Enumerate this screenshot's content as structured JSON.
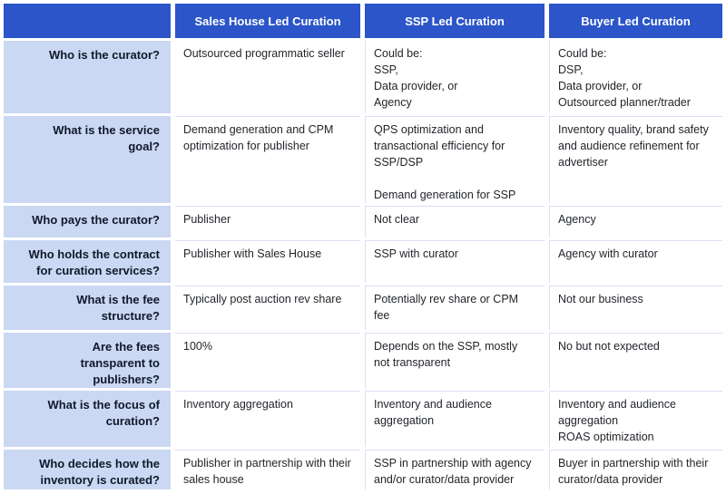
{
  "colors": {
    "header_bg": "#2b55c8",
    "header_text": "#ffffff",
    "label_bg": "#cbd8f3",
    "label_text": "#10182a",
    "body_text": "#1f2328",
    "divider": "#d9e0f0"
  },
  "table": {
    "columns": [
      "Sales House Led Curation",
      "SSP Led Curation",
      "Buyer Led Curation"
    ],
    "rows": [
      {
        "label": "Who is the curator?",
        "cells": [
          "Outsourced programmatic seller",
          "Could be:\nSSP,\nData provider, or\nAgency",
          "Could be:\nDSP,\nData provider, or\nOutsourced planner/trader"
        ]
      },
      {
        "label": "What is the service\ngoal?",
        "cells": [
          "Demand generation and CPM\noptimization for publisher",
          "QPS optimization and\ntransactional efficiency for\nSSP/DSP\n\nDemand generation for SSP",
          "Inventory quality, brand safety\nand audience refinement for\nadvertiser"
        ]
      },
      {
        "label": "Who pays the curator?",
        "cells": [
          "Publisher",
          "Not clear",
          "Agency"
        ]
      },
      {
        "label": "Who holds the contract\nfor curation services?",
        "cells": [
          "Publisher with Sales House",
          "SSP with curator",
          "Agency with curator"
        ]
      },
      {
        "label": "What is the fee\nstructure?",
        "cells": [
          "Typically post auction rev share",
          "Potentially rev share or CPM\nfee",
          "Not our business"
        ]
      },
      {
        "label": "Are the fees\ntransparent to\npublishers?",
        "cells": [
          "100%",
          "Depends on the SSP, mostly\nnot transparent",
          "No but not expected"
        ]
      },
      {
        "label": "What is the focus of\ncuration?",
        "cells": [
          "Inventory aggregation",
          "Inventory and audience\naggregation",
          "Inventory and audience\naggregation\nROAS optimization"
        ]
      },
      {
        "label": "Who decides how the\ninventory is curated?",
        "cells": [
          "Publisher in partnership with their\nsales house",
          "SSP in partnership with agency\nand/or curator/data provider",
          "Buyer in partnership with their\ncurator/data provider"
        ]
      }
    ]
  }
}
